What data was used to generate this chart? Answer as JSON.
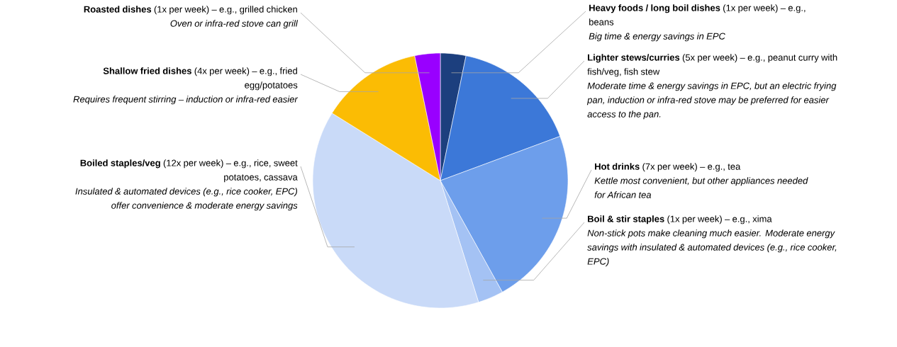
{
  "chart_data": {
    "type": "pie",
    "categories": [
      "**Heavy foods / long boil dishes** (1x per week) – e.g., beans",
      "**Lighter stews/curries** (5x per week) – e.g., peanut curry with fish/veg, fish stew",
      "**Hot drinks** (7x per week) – e.g., tea",
      "**Boil & stir staples** (1x per week) – e.g., xima",
      "**Boiled staples/veg** (12x per week) – e.g., rice, sweet potatoes, cassava",
      "**Shallow fried dishes** (4x per week) – e.g., fried egg/potatoes",
      "**Roasted dishes** (1x per week) – e.g., grilled chicken"
    ],
    "values": [
      1,
      5,
      7,
      1,
      12,
      4,
      1
    ],
    "colors": [
      "#1c3f7e",
      "#3c78d8",
      "#6d9eeb",
      "#a4c2f4",
      "#c9daf8",
      "#fbbc04",
      "#9900ff"
    ],
    "annotations": [
      "Big time & energy savings in EPC",
      "Moderate time & energy savings in EPC, but an electric frying pan, induction or infra-red stove may be preferred for easier access to the pan.",
      "Kettle most convenient, but other appliances needed for African tea",
      "Non-stick pots make cleaning much easier. Moderate energy savings with insulated & automated devices (e.g., rice cooker, EPC)",
      "Insulated & automated devices (e.g., rice cooker, EPC) offer convenience & moderate energy savings",
      "Requires frequent stirring – induction or infra-red easier",
      "Oven or infra-red stove can grill"
    ]
  }
}
